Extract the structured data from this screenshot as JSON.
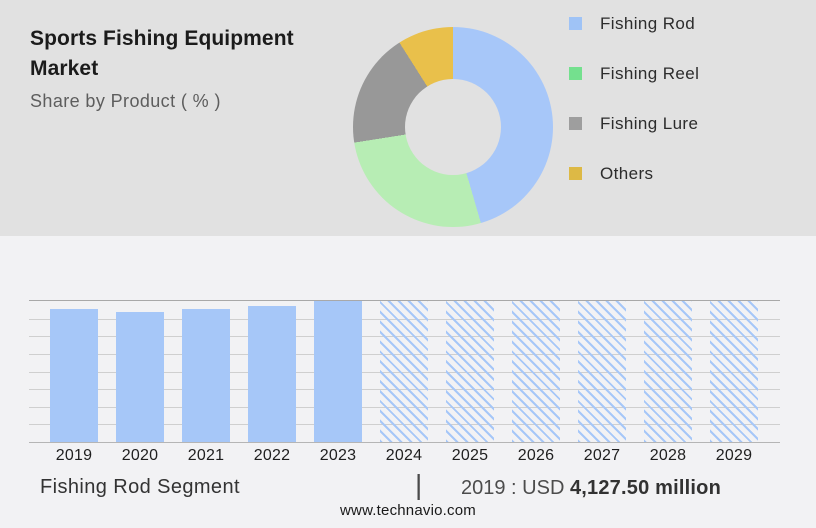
{
  "header": {
    "title": "Sports Fishing Equipment Market",
    "subtitle": "Share by Product ( % )"
  },
  "chart_data": [
    {
      "type": "pie",
      "variant": "donut",
      "title": "Share by Product ( % )",
      "legend_position": "right",
      "slices": [
        {
          "label": "Fishing Rod",
          "value_pct": 45.5,
          "color": "#a7c7f9",
          "legend_color": "#9fc3f6"
        },
        {
          "label": "Fishing Reel",
          "value_pct": 27.0,
          "color": "#b7edb4",
          "legend_color": "#74e08e"
        },
        {
          "label": "Fishing Lure",
          "value_pct": 18.5,
          "color": "#989898",
          "legend_color": "#9e9e9e"
        },
        {
          "label": "Others",
          "value_pct": 9.0,
          "color": "#e9c04b",
          "legend_color": "#ddb945"
        }
      ]
    },
    {
      "type": "bar",
      "title": "Fishing Rod Segment",
      "categories": [
        "2019",
        "2020",
        "2021",
        "2022",
        "2023",
        "2024",
        "2025",
        "2026",
        "2027",
        "2028",
        "2029"
      ],
      "relative_heights": [
        0.945,
        0.922,
        0.945,
        0.966,
        1,
        1,
        1,
        1,
        1,
        1,
        1
      ],
      "forecast_years": [
        "2024",
        "2025",
        "2026",
        "2027",
        "2028",
        "2029"
      ],
      "stated_value": {
        "year": "2019",
        "value": "USD 4,127.50 million"
      },
      "grid": true,
      "y_axis_labels": false
    }
  ],
  "footer": {
    "segment_label": "Fishing Rod Segment",
    "separator": "|",
    "value_prefix": "2019 : USD ",
    "value_bold": "4,127.50 million",
    "website": "www.technavio.com"
  },
  "colors": {
    "top_bg": "#e1e1e1",
    "bottom_bg": "#f2f2f4",
    "bar_color": "#a6c7f8",
    "grid_color": "#cfcfcf",
    "axis_top_line": "#a8a8a8",
    "axis_base_line": "#b5b5b5"
  }
}
